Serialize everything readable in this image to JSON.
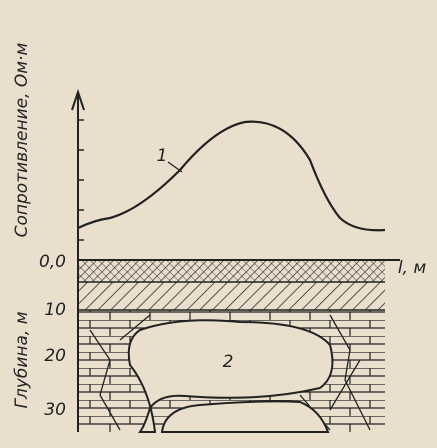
{
  "axes": {
    "resistance_label": "Сопротивление, Ом·м",
    "depth_label": "Глубина, м",
    "distance_label": "l, м"
  },
  "depth_ticks": [
    "0,0",
    "10",
    "20",
    "30"
  ],
  "labels": {
    "curve": "1",
    "cavity": "2"
  }
}
